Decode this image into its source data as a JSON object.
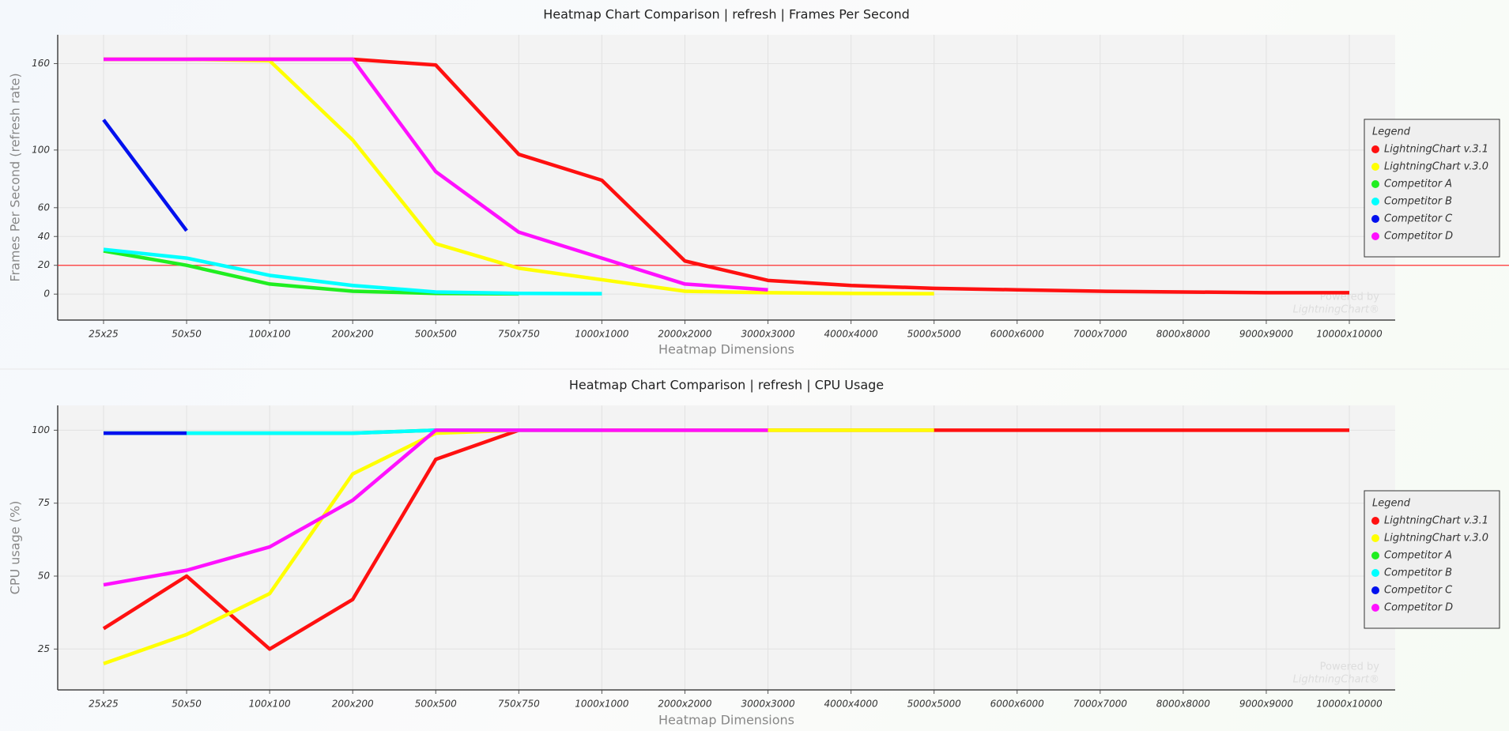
{
  "chart_data": [
    {
      "type": "line",
      "title": "Heatmap Chart Comparison | refresh | Frames Per Second",
      "x_label": "Heatmap Dimensions",
      "y_label": "Frames Per Second (refresh rate)",
      "categories": [
        "25x25",
        "50x50",
        "100x100",
        "200x200",
        "500x500",
        "750x750",
        "1000x1000",
        "2000x2000",
        "3000x3000",
        "4000x4000",
        "5000x5000",
        "6000x6000",
        "7000x7000",
        "8000x8000",
        "9000x9000",
        "10000x10000"
      ],
      "ylim": [
        -18,
        180
      ],
      "yticks": [
        0,
        20,
        40,
        60,
        100,
        160
      ],
      "grid": true,
      "reference_line": {
        "value": 20,
        "color": "#ff3030"
      },
      "legend": "right",
      "legend_title": "Legend",
      "watermark": [
        "Powered by",
        "LightningChart®"
      ],
      "series": [
        {
          "name": "LightningChart v.3.1",
          "color": "#ff1010",
          "values": [
            163,
            163,
            163,
            163,
            159,
            97,
            79,
            23,
            9.5,
            6,
            4,
            3,
            2,
            1.5,
            1,
            1
          ]
        },
        {
          "name": "LightningChart v.3.0",
          "color": "#ffff00",
          "values": [
            163,
            163,
            162,
            107,
            35,
            18,
            10,
            2,
            1,
            0.5,
            0.3,
            null,
            null,
            null,
            null,
            null
          ]
        },
        {
          "name": "Competitor A",
          "color": "#20ee20",
          "values": [
            30,
            20,
            7,
            2,
            0.5,
            0.2,
            null,
            null,
            null,
            null,
            null,
            null,
            null,
            null,
            null,
            null
          ]
        },
        {
          "name": "Competitor B",
          "color": "#00ffff",
          "values": [
            31,
            25,
            13,
            6,
            1.5,
            0.5,
            0.3,
            null,
            null,
            null,
            null,
            null,
            null,
            null,
            null,
            null
          ]
        },
        {
          "name": "Competitor C",
          "color": "#0010ee",
          "values": [
            121,
            44,
            null,
            null,
            null,
            null,
            null,
            null,
            null,
            null,
            null,
            null,
            null,
            null,
            null,
            null
          ]
        },
        {
          "name": "Competitor D",
          "color": "#ff10ff",
          "values": [
            163,
            163,
            163,
            163,
            85,
            43,
            25,
            7,
            3,
            null,
            null,
            null,
            null,
            null,
            null,
            null
          ]
        }
      ]
    },
    {
      "type": "line",
      "title": "Heatmap Chart Comparison | refresh | CPU Usage",
      "x_label": "Heatmap Dimensions",
      "y_label": "CPU usage (%)",
      "categories": [
        "25x25",
        "50x50",
        "100x100",
        "200x200",
        "500x500",
        "750x750",
        "1000x1000",
        "2000x2000",
        "3000x3000",
        "4000x4000",
        "5000x5000",
        "6000x6000",
        "7000x7000",
        "8000x8000",
        "9000x9000",
        "10000x10000"
      ],
      "ylim": [
        11,
        108.5
      ],
      "yticks": [
        25,
        50,
        75,
        100
      ],
      "grid": true,
      "legend": "right",
      "legend_title": "Legend",
      "watermark": [
        "Powered by",
        "LightningChart®"
      ],
      "series": [
        {
          "name": "LightningChart v.3.1",
          "color": "#ff1010",
          "values": [
            32,
            50,
            25,
            42,
            90,
            100,
            100,
            100,
            100,
            100,
            100,
            100,
            100,
            100,
            100,
            100
          ]
        },
        {
          "name": "LightningChart v.3.0",
          "color": "#ffff00",
          "values": [
            20,
            30,
            44,
            85,
            99,
            100,
            100,
            100,
            100,
            100,
            100,
            null,
            null,
            null,
            null,
            null
          ]
        },
        {
          "name": "Competitor A",
          "color": "#20ee20",
          "values": [
            99,
            99,
            99,
            99,
            100,
            100,
            null,
            null,
            null,
            null,
            null,
            null,
            null,
            null,
            null,
            null
          ]
        },
        {
          "name": "Competitor B",
          "color": "#00ffff",
          "values": [
            99,
            99,
            99,
            99,
            100,
            100,
            100,
            null,
            null,
            null,
            null,
            null,
            null,
            null,
            null,
            null
          ]
        },
        {
          "name": "Competitor C",
          "color": "#0010ee",
          "values": [
            99,
            99,
            null,
            null,
            null,
            null,
            null,
            null,
            null,
            null,
            null,
            null,
            null,
            null,
            null,
            null
          ]
        },
        {
          "name": "Competitor D",
          "color": "#ff10ff",
          "values": [
            47,
            52,
            60,
            76,
            100,
            100,
            100,
            100,
            100,
            null,
            null,
            null,
            null,
            null,
            null,
            null
          ]
        }
      ]
    }
  ]
}
